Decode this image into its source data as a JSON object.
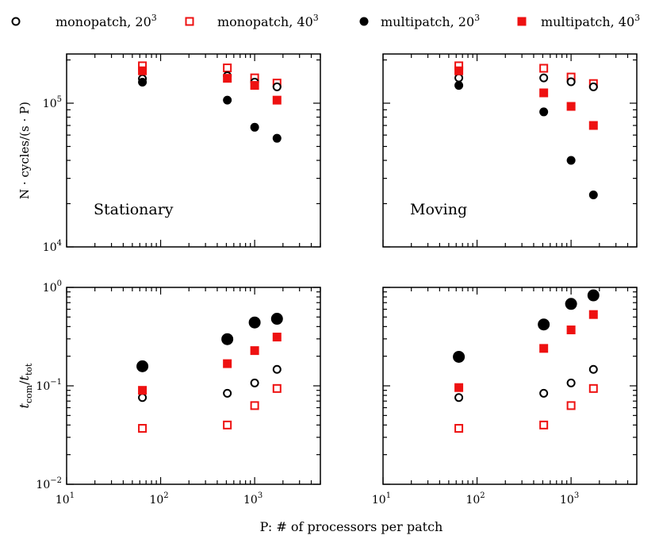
{
  "chart_data": {
    "type": "scatter",
    "xscale": "log",
    "xlim": [
      10,
      5000
    ],
    "xlabel": "P: # of processors per patch",
    "x_ticks": [
      {
        "value": 10,
        "base": "10",
        "exp": "1"
      },
      {
        "value": 100,
        "base": "10",
        "exp": "2"
      },
      {
        "value": 1000,
        "base": "10",
        "exp": "3"
      }
    ],
    "legend": {
      "placement": "top",
      "entries": [
        {
          "key": "mono20",
          "base": "monopatch, 20",
          "exp": "3",
          "marker": "open-circle",
          "color": "#000000"
        },
        {
          "key": "mono40",
          "base": "monopatch, 40",
          "exp": "3",
          "marker": "open-square",
          "color": "#ee1111"
        },
        {
          "key": "multi20",
          "base": "multipatch, 20",
          "exp": "3",
          "marker": "filled-circle",
          "color": "#000000"
        },
        {
          "key": "multi40",
          "base": "multipatch, 40",
          "exp": "3",
          "marker": "filled-square",
          "color": "#ee1111"
        }
      ]
    },
    "rows": [
      {
        "ylabel_main": "N · cycles/(s · P)",
        "yscale": "log",
        "ylim": [
          10000,
          220000
        ],
        "y_ticks": [
          {
            "value": 10000,
            "base": "10",
            "exp": "4"
          },
          {
            "value": 100000,
            "base": "10",
            "exp": "5"
          }
        ]
      },
      {
        "ylabel_t": "t",
        "ylabel_com": "com",
        "ylabel_slash": "/",
        "ylabel_tot": "tot",
        "yscale": "log",
        "ylim": [
          0.01,
          1.0
        ],
        "y_ticks": [
          {
            "value": 0.01,
            "base": "10",
            "exp": "−2"
          },
          {
            "value": 0.1,
            "base": "10",
            "exp": "−1"
          },
          {
            "value": 1,
            "base": "10",
            "exp": "0"
          }
        ]
      }
    ],
    "panels": [
      {
        "row": 0,
        "col": 0,
        "label": "Stationary",
        "series": {
          "mono20": {
            "x": [
              64,
              512,
              1000,
              1728
            ],
            "y": [
              148000,
              155000,
              140000,
              130000
            ]
          },
          "mono40": {
            "x": [
              64,
              512,
              1000,
              1728
            ],
            "y": [
              182000,
              176000,
              150000,
              138000
            ]
          },
          "multi20": {
            "x": [
              64,
              512,
              1000,
              1728
            ],
            "y": [
              140000,
              105000,
              68000,
              57000
            ]
          },
          "multi40": {
            "x": [
              64,
              512,
              1000,
              1728
            ],
            "y": [
              168000,
              149000,
              133000,
              105000
            ]
          }
        }
      },
      {
        "row": 0,
        "col": 1,
        "label": "Moving",
        "series": {
          "mono20": {
            "x": [
              64,
              512,
              1000,
              1728
            ],
            "y": [
              150000,
              150000,
              141000,
              130000
            ]
          },
          "mono40": {
            "x": [
              64,
              512,
              1000,
              1728
            ],
            "y": [
              182000,
              175000,
              152000,
              137000
            ]
          },
          "multi20": {
            "x": [
              64,
              512,
              1000,
              1728
            ],
            "y": [
              133000,
              87000,
              40000,
              23000
            ]
          },
          "multi40": {
            "x": [
              64,
              512,
              1000,
              1728
            ],
            "y": [
              168000,
              118000,
              95000,
              70000
            ]
          }
        }
      },
      {
        "row": 1,
        "col": 0,
        "label": "",
        "series": {
          "mono20": {
            "x": [
              64,
              512,
              1000,
              1728
            ],
            "y": [
              0.076,
              0.084,
              0.107,
              0.147
            ]
          },
          "mono40": {
            "x": [
              64,
              512,
              1000,
              1728
            ],
            "y": [
              0.037,
              0.04,
              0.063,
              0.094
            ]
          },
          "multi20": {
            "x": [
              64,
              512,
              1000,
              1728
            ],
            "y": [
              0.158,
              0.298,
              0.44,
              0.48
            ]
          },
          "multi40": {
            "x": [
              64,
              512,
              1000,
              1728
            ],
            "y": [
              0.09,
              0.168,
              0.228,
              0.313
            ]
          }
        }
      },
      {
        "row": 1,
        "col": 1,
        "label": "",
        "series": {
          "mono20": {
            "x": [
              64,
              512,
              1000,
              1728
            ],
            "y": [
              0.076,
              0.084,
              0.107,
              0.147
            ]
          },
          "mono40": {
            "x": [
              64,
              512,
              1000,
              1728
            ],
            "y": [
              0.037,
              0.04,
              0.063,
              0.094
            ]
          },
          "multi20": {
            "x": [
              64,
              512,
              1000,
              1728
            ],
            "y": [
              0.197,
              0.42,
              0.68,
              0.83
            ]
          },
          "multi40": {
            "x": [
              64,
              512,
              1000,
              1728
            ],
            "y": [
              0.096,
              0.24,
              0.37,
              0.53
            ]
          }
        }
      }
    ]
  }
}
